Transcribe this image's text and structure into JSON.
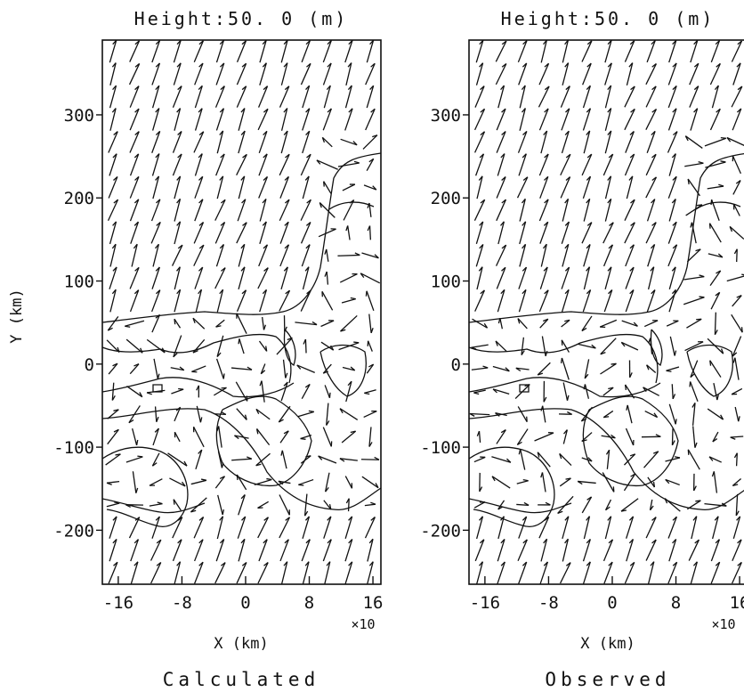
{
  "chart_data": [
    {
      "type": "vector-field",
      "title": "Height:50. 0 (m)",
      "caption": "Calculated",
      "xlabel": "X (km)",
      "ylabel": "Y (km)",
      "x_multiplier": "×10",
      "x_ticks": [
        "-16",
        "-8",
        "0",
        "8",
        "16"
      ],
      "y_ticks": [
        "300",
        "200",
        "100",
        "0",
        "-100",
        "-200"
      ],
      "xlim": [
        -18,
        17
      ],
      "ylim": [
        -265,
        390
      ],
      "prevailing_wind_direction_deg": 20,
      "grid": false
    },
    {
      "type": "vector-field",
      "title": "Height:50. 0 (m)",
      "caption": "Observed",
      "xlabel": "X (km)",
      "ylabel": "",
      "x_multiplier": "×10",
      "x_ticks": [
        "-16",
        "-8",
        "0",
        "8",
        "16"
      ],
      "y_ticks": [
        "300",
        "200",
        "100",
        "0",
        "-100",
        "-200"
      ],
      "xlim": [
        -18,
        17
      ],
      "ylim": [
        -265,
        390
      ],
      "prevailing_wind_direction_deg": 20,
      "grid": false
    }
  ]
}
